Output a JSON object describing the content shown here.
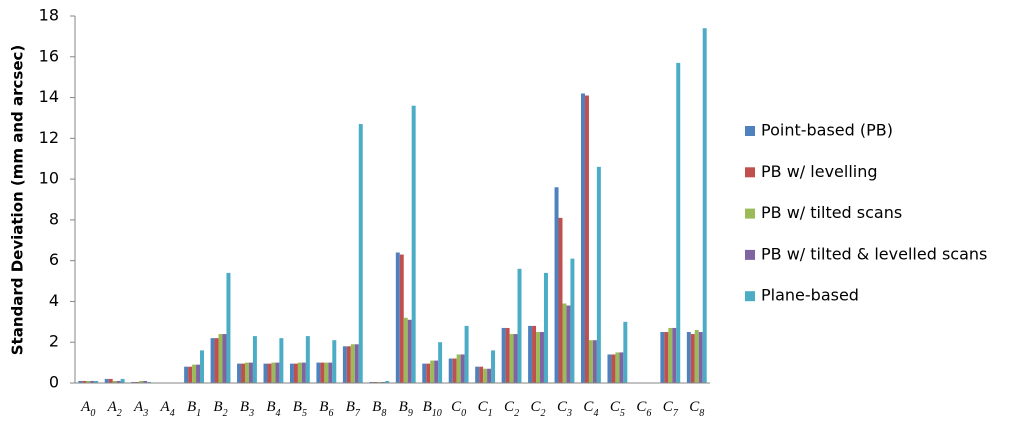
{
  "chart_data": {
    "type": "bar",
    "y_label": "Standard Deviation (mm and arcsec)",
    "categories": [
      [
        "A",
        "0"
      ],
      [
        "A",
        "2"
      ],
      [
        "A",
        "3"
      ],
      [
        "A",
        "4"
      ],
      [
        "B",
        "1"
      ],
      [
        "B",
        "2"
      ],
      [
        "B",
        "3"
      ],
      [
        "B",
        "4"
      ],
      [
        "B",
        "5"
      ],
      [
        "B",
        "6"
      ],
      [
        "B",
        "7"
      ],
      [
        "B",
        "8"
      ],
      [
        "B",
        "9"
      ],
      [
        "B",
        "10"
      ],
      [
        "C",
        "0"
      ],
      [
        "C",
        "1"
      ],
      [
        "C",
        "2"
      ],
      [
        "C",
        "2"
      ],
      [
        "C",
        "3"
      ],
      [
        "C",
        "4"
      ],
      [
        "C",
        "5"
      ],
      [
        "C",
        "6"
      ],
      [
        "C",
        "7"
      ],
      [
        "C",
        "8"
      ]
    ],
    "series": [
      {
        "name": "Point-based (PB)",
        "color": "#4f81bd",
        "values": [
          0.1,
          0.2,
          0.05,
          0,
          0.8,
          2.2,
          0.95,
          0.95,
          0.95,
          1.0,
          1.8,
          0.05,
          6.4,
          0.95,
          1.2,
          0.8,
          2.7,
          2.8,
          9.6,
          14.2,
          1.4,
          0,
          2.5,
          2.5
        ]
      },
      {
        "name": "PB w/ levelling",
        "color": "#c0504d",
        "values": [
          0.1,
          0.2,
          0.05,
          0,
          0.8,
          2.2,
          0.95,
          0.95,
          0.95,
          1.0,
          1.8,
          0.05,
          6.3,
          0.95,
          1.2,
          0.8,
          2.7,
          2.8,
          8.1,
          14.1,
          1.4,
          0,
          2.5,
          2.4
        ]
      },
      {
        "name": "PB w/ tilted scans",
        "color": "#9bbb59",
        "values": [
          0.1,
          0.1,
          0.1,
          0,
          0.9,
          2.4,
          1.0,
          1.0,
          1.0,
          1.0,
          1.9,
          0.05,
          3.2,
          1.1,
          1.4,
          0.7,
          2.4,
          2.5,
          3.9,
          2.1,
          1.5,
          0,
          2.7,
          2.6
        ]
      },
      {
        "name": "PB w/ tilted & levelled scans",
        "color": "#8064a2",
        "values": [
          0.1,
          0.1,
          0.1,
          0,
          0.9,
          2.4,
          1.0,
          1.0,
          1.0,
          1.0,
          1.9,
          0.05,
          3.1,
          1.1,
          1.4,
          0.7,
          2.4,
          2.5,
          3.8,
          2.1,
          1.5,
          0,
          2.7,
          2.5
        ]
      },
      {
        "name": "Plane-based",
        "color": "#4bacc6",
        "values": [
          0.1,
          0.2,
          0.05,
          0,
          1.6,
          5.4,
          2.3,
          2.2,
          2.3,
          2.1,
          12.7,
          0.1,
          13.6,
          2.0,
          2.8,
          1.6,
          5.6,
          5.4,
          6.1,
          10.6,
          3.0,
          0,
          15.7,
          17.4
        ]
      }
    ],
    "ylim": [
      0,
      18
    ],
    "yticks": [
      0,
      2,
      4,
      6,
      8,
      10,
      12,
      14,
      16,
      18
    ],
    "grid": false,
    "legend": "right"
  }
}
